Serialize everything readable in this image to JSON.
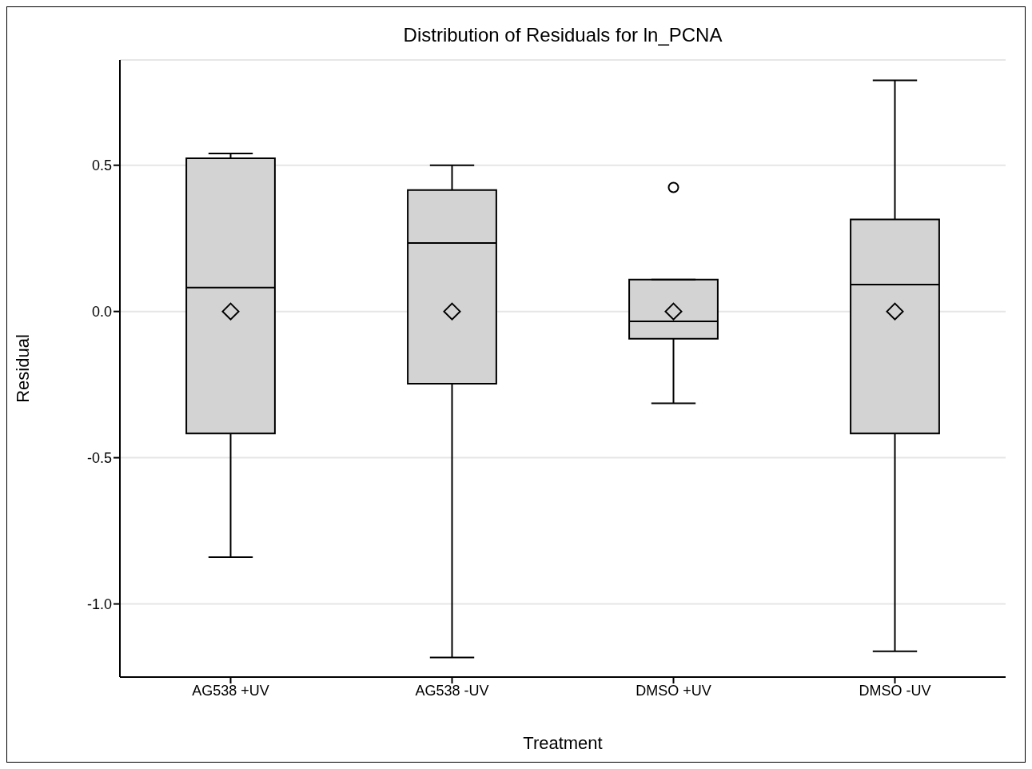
{
  "chart_data": {
    "type": "box",
    "title": "Distribution of Residuals for ln_PCNA",
    "xlabel": "Treatment",
    "ylabel": "Residual",
    "categories": [
      "AG538 +UV",
      "AG538 -UV",
      "DMSO +UV",
      "DMSO -UV"
    ],
    "color": "#d3d3d3",
    "boxes": [
      {
        "low": -0.84,
        "q1": -0.417,
        "median": 0.082,
        "q3": 0.524,
        "high": 0.54,
        "mean": 0
      },
      {
        "low": -1.183,
        "q1": -0.247,
        "median": 0.234,
        "q3": 0.415,
        "high": 0.5,
        "mean": 0
      },
      {
        "low": -0.314,
        "q1": -0.093,
        "median": -0.034,
        "q3": 0.109,
        "high": 0.109,
        "mean": 0,
        "outliers": [
          0.424
        ]
      },
      {
        "low": -1.162,
        "q1": -0.417,
        "median": 0.092,
        "q3": 0.315,
        "high": 0.79,
        "mean": 0
      }
    ],
    "ylim": [
      -1.25,
      0.86
    ],
    "yticks": [
      {
        "value": -1,
        "label": "-1.0"
      },
      -0.5,
      {
        "value": 0,
        "label": "0.0"
      },
      0.5
    ],
    "grid": "y"
  }
}
